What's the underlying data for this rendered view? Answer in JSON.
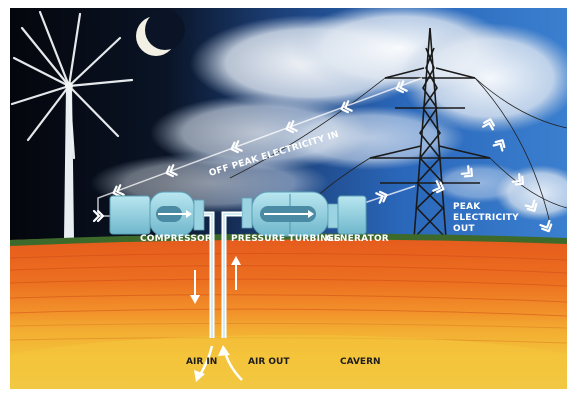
{
  "diagram": {
    "labels": {
      "off_peak_in": "OFF PEAK ELECTRICITY IN",
      "peak_out_line1": "PEAK",
      "peak_out_line2": "ELECTRICITY",
      "peak_out_line3": "OUT",
      "compressor": "COMPRESSOR",
      "pressure_turbines": "PRESSURE TURBINES",
      "generator": "GENERATOR",
      "air_in": "AIR IN",
      "air_out": "AIR OUT",
      "cavern": "CAVERN"
    },
    "colors": {
      "night_sky": "#05080f",
      "day_sky": "#2c6bc0",
      "cloud": "#e9eef5",
      "machinery": "#8ecfe0",
      "ground_grass": "#3d6a2a",
      "soil_top": "#e65d1e",
      "soil_mid": "#f08a22",
      "cavern": "#f3c13a",
      "arrow": "#ffffff"
    },
    "icons": [
      "wind-turbine-icon",
      "moon-icon",
      "pylon-icon",
      "compressor-icon",
      "turbine-icon",
      "generator-icon"
    ]
  }
}
